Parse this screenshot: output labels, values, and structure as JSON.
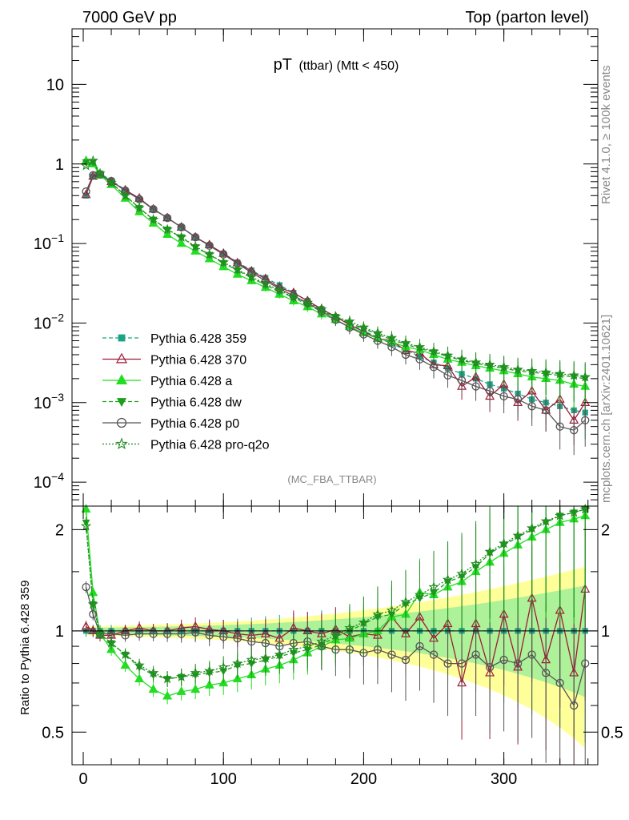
{
  "header": {
    "left": "7000 GeV pp",
    "right": "Top (parton level)"
  },
  "side_labels": {
    "rivet": "Rivet 4.1.0, ≥ 100k events",
    "mcplots": "mcplots.cern.ch [arXiv:2401.10621]"
  },
  "main_panel": {
    "title_main": "pT",
    "title_sub": "(ttbar) (Mtt < 450)",
    "analysis": "(MC_FBA_TTBAR)",
    "y_ticks": [
      {
        "base": "10",
        "exp": "",
        "value": 10
      },
      {
        "base": "1",
        "exp": "",
        "value": 1
      },
      {
        "base": "10",
        "exp": "−1",
        "value": 0.1
      },
      {
        "base": "10",
        "exp": "−2",
        "value": 0.01
      },
      {
        "base": "10",
        "exp": "−3",
        "value": 0.001
      },
      {
        "base": "10",
        "exp": "−4",
        "value": 0.0001
      }
    ]
  },
  "ratio_panel": {
    "ylabel": "Ratio to Pythia 6.428 359",
    "y_ticks": [
      {
        "label": "2",
        "value": 2
      },
      {
        "label": "1",
        "value": 1
      },
      {
        "label": "0.5",
        "value": 0.5
      }
    ]
  },
  "x_ticks": [
    {
      "label": "0",
      "value": 0
    },
    {
      "label": "100",
      "value": 100
    },
    {
      "label": "200",
      "value": 200
    },
    {
      "label": "300",
      "value": 300
    }
  ],
  "legend": [
    {
      "label": "Pythia 6.428 359",
      "color": "#1aa385",
      "marker": "square",
      "dash": "5,3"
    },
    {
      "label": "Pythia 6.428 370",
      "color": "#a01a38",
      "marker": "triangle-open",
      "dash": ""
    },
    {
      "label": "Pythia 6.428 a",
      "color": "#22dd22",
      "marker": "triangle",
      "dash": ""
    },
    {
      "label": "Pythia 6.428 dw",
      "color": "#1a9f1a",
      "marker": "triangle-down",
      "dash": "5,3"
    },
    {
      "label": "Pythia 6.428 p0",
      "color": "#555555",
      "marker": "circle-open",
      "dash": ""
    },
    {
      "label": "Pythia 6.428 pro-q2o",
      "color": "#228b22",
      "marker": "star-open",
      "dash": "2,2"
    }
  ],
  "chart_data": {
    "type": "line",
    "title": "pT (ttbar) (Mtt < 450)",
    "xlabel": "",
    "ylabel": "",
    "xlim": [
      -8,
      367
    ],
    "ylim": [
      5e-05,
      50
    ],
    "yscale": "log",
    "ratio_ylim": [
      0.4,
      2.35
    ],
    "x": [
      2,
      7,
      12,
      20,
      30,
      40,
      50,
      60,
      70,
      80,
      90,
      100,
      110,
      120,
      130,
      140,
      150,
      160,
      170,
      180,
      190,
      200,
      210,
      220,
      230,
      240,
      250,
      260,
      270,
      280,
      290,
      300,
      310,
      320,
      330,
      340,
      350,
      358
    ],
    "series": [
      {
        "name": "Pythia 6.428 359",
        "values": [
          0.4,
          0.7,
          0.76,
          0.62,
          0.47,
          0.36,
          0.27,
          0.21,
          0.16,
          0.12,
          0.095,
          0.075,
          0.058,
          0.046,
          0.037,
          0.03,
          0.024,
          0.019,
          0.015,
          0.012,
          0.0098,
          0.008,
          0.0066,
          0.0055,
          0.0046,
          0.0038,
          0.0032,
          0.0027,
          0.0023,
          0.002,
          0.0017,
          0.0015,
          0.0013,
          0.0011,
          0.001,
          0.0009,
          0.0008,
          0.00075
        ],
        "ratio": [
          1.0,
          1.0,
          1.0,
          1.0,
          1.0,
          1.0,
          1.0,
          1.0,
          1.0,
          1.0,
          1.0,
          1.0,
          1.0,
          1.0,
          1.0,
          1.0,
          1.0,
          1.0,
          1.0,
          1.0,
          1.0,
          1.0,
          1.0,
          1.0,
          1.0,
          1.0,
          1.0,
          1.0,
          1.0,
          1.0,
          1.0,
          1.0,
          1.0,
          1.0,
          1.0,
          1.0,
          1.0,
          1.0
        ]
      },
      {
        "name": "Pythia 6.428 370",
        "values": [
          0.41,
          0.7,
          0.74,
          0.6,
          0.47,
          0.37,
          0.27,
          0.21,
          0.16,
          0.12,
          0.096,
          0.075,
          0.057,
          0.045,
          0.036,
          0.028,
          0.024,
          0.019,
          0.015,
          0.012,
          0.0095,
          0.0078,
          0.0064,
          0.006,
          0.0045,
          0.0042,
          0.003,
          0.0029,
          0.0016,
          0.0021,
          0.0012,
          0.0017,
          0.001,
          0.0014,
          0.0008,
          0.0011,
          0.0006,
          0.001
        ],
        "ratio": [
          1.03,
          1.0,
          0.97,
          0.97,
          1.0,
          1.02,
          1.0,
          1.0,
          1.02,
          1.03,
          1.01,
          1.0,
          0.98,
          0.97,
          0.98,
          0.95,
          1.02,
          1.0,
          0.98,
          1.01,
          0.96,
          0.98,
          0.97,
          1.1,
          0.98,
          1.1,
          0.95,
          1.05,
          0.7,
          1.05,
          0.75,
          1.12,
          0.78,
          1.25,
          0.82,
          1.15,
          0.75,
          1.33
        ]
      },
      {
        "name": "Pythia 6.428 a",
        "values": [
          1.1,
          1.0,
          0.72,
          0.55,
          0.37,
          0.25,
          0.18,
          0.13,
          0.1,
          0.08,
          0.064,
          0.051,
          0.041,
          0.034,
          0.028,
          0.023,
          0.019,
          0.016,
          0.013,
          0.011,
          0.009,
          0.0075,
          0.0064,
          0.0058,
          0.005,
          0.0046,
          0.004,
          0.0035,
          0.0032,
          0.0029,
          0.0027,
          0.0025,
          0.0023,
          0.0021,
          0.002,
          0.0019,
          0.0017,
          0.0016
        ],
        "ratio": [
          2.3,
          1.3,
          0.98,
          0.88,
          0.79,
          0.72,
          0.67,
          0.64,
          0.66,
          0.67,
          0.69,
          0.7,
          0.72,
          0.74,
          0.77,
          0.79,
          0.82,
          0.86,
          0.9,
          0.94,
          0.95,
          0.98,
          1.0,
          1.1,
          1.12,
          1.3,
          1.28,
          1.35,
          1.4,
          1.5,
          1.6,
          1.7,
          1.8,
          1.9,
          2.0,
          2.1,
          2.15,
          2.2
        ]
      },
      {
        "name": "Pythia 6.428 dw",
        "values": [
          1.05,
          1.05,
          0.75,
          0.58,
          0.4,
          0.28,
          0.2,
          0.15,
          0.12,
          0.09,
          0.072,
          0.057,
          0.046,
          0.037,
          0.03,
          0.025,
          0.021,
          0.017,
          0.014,
          0.012,
          0.01,
          0.0085,
          0.0072,
          0.0062,
          0.0054,
          0.0048,
          0.0043,
          0.0038,
          0.0034,
          0.0031,
          0.0029,
          0.0027,
          0.0025,
          0.0024,
          0.0023,
          0.0022,
          0.0021,
          0.002
        ],
        "ratio": [
          2.1,
          1.2,
          0.98,
          0.92,
          0.85,
          0.78,
          0.74,
          0.72,
          0.73,
          0.74,
          0.75,
          0.76,
          0.79,
          0.8,
          0.82,
          0.84,
          0.86,
          0.88,
          0.91,
          0.96,
          1.0,
          1.05,
          1.1,
          1.12,
          1.2,
          1.25,
          1.3,
          1.4,
          1.45,
          1.55,
          1.7,
          1.8,
          1.9,
          2.0,
          2.1,
          2.2,
          2.25,
          2.3
        ]
      },
      {
        "name": "Pythia 6.428 p0",
        "values": [
          0.45,
          0.72,
          0.74,
          0.61,
          0.46,
          0.36,
          0.27,
          0.21,
          0.16,
          0.12,
          0.094,
          0.073,
          0.056,
          0.043,
          0.034,
          0.027,
          0.022,
          0.018,
          0.014,
          0.011,
          0.0088,
          0.0072,
          0.006,
          0.005,
          0.004,
          0.0035,
          0.0028,
          0.0022,
          0.0019,
          0.0016,
          0.0014,
          0.0012,
          0.0011,
          0.0009,
          0.0008,
          0.0005,
          0.00045,
          0.0006
        ],
        "ratio": [
          1.35,
          1.12,
          0.98,
          0.98,
          0.97,
          0.98,
          0.98,
          0.98,
          0.98,
          0.99,
          0.97,
          0.96,
          0.95,
          0.93,
          0.92,
          0.9,
          0.92,
          0.93,
          0.9,
          0.88,
          0.88,
          0.86,
          0.88,
          0.85,
          0.82,
          0.9,
          0.85,
          0.8,
          0.8,
          0.85,
          0.78,
          0.82,
          0.8,
          0.85,
          0.75,
          0.7,
          0.6,
          0.8
        ]
      },
      {
        "name": "Pythia 6.428 pro-q2o",
        "values": [
          0.95,
          1.1,
          0.76,
          0.58,
          0.4,
          0.28,
          0.2,
          0.15,
          0.12,
          0.092,
          0.073,
          0.058,
          0.047,
          0.038,
          0.031,
          0.026,
          0.021,
          0.018,
          0.015,
          0.012,
          0.0105,
          0.0088,
          0.0075,
          0.0065,
          0.0056,
          0.005,
          0.0044,
          0.0039,
          0.0035,
          0.0032,
          0.003,
          0.0028,
          0.0026,
          0.0025,
          0.0024,
          0.0023,
          0.0022,
          0.0021
        ],
        "ratio": [
          2.05,
          1.2,
          0.98,
          0.92,
          0.85,
          0.79,
          0.75,
          0.72,
          0.73,
          0.75,
          0.76,
          0.78,
          0.8,
          0.82,
          0.83,
          0.85,
          0.88,
          0.9,
          0.93,
          0.97,
          1.02,
          1.06,
          1.12,
          1.15,
          1.22,
          1.28,
          1.35,
          1.42,
          1.48,
          1.58,
          1.72,
          1.82,
          1.92,
          2.02,
          2.12,
          2.2,
          2.25,
          2.3
        ]
      }
    ]
  }
}
